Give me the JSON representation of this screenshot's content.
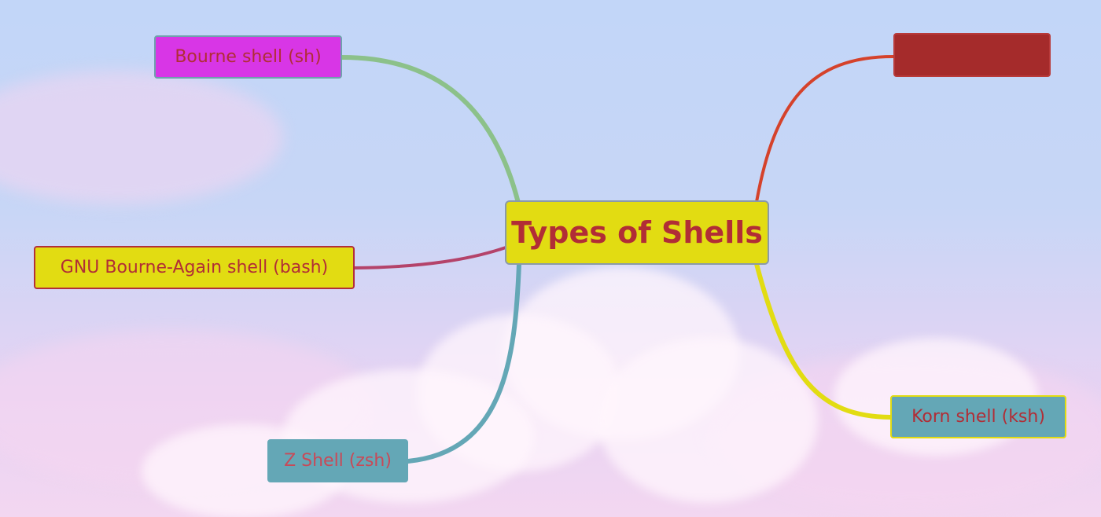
{
  "central": {
    "label": "Types of Shells",
    "color": "#e2dc12"
  },
  "branches": [
    {
      "id": "bourne",
      "label": "Bourne shell (sh)",
      "fill": "#d836e6",
      "link_color": "#8cc18a"
    },
    {
      "id": "bash",
      "label": "GNU Bourne-Again shell (bash)",
      "fill": "#e2dc12",
      "link_color": "#b4436a"
    },
    {
      "id": "zsh",
      "label": "Z Shell (zsh)",
      "fill": "#64a7b6",
      "link_color": "#64a7b6"
    },
    {
      "id": "red",
      "label": "",
      "fill": "#a52b2b",
      "link_color": "#d5422b"
    },
    {
      "id": "ksh",
      "label": "Korn shell (ksh)",
      "fill": "#64a7b6",
      "link_color": "#e2dc12"
    }
  ],
  "text_color": "#b12d36"
}
